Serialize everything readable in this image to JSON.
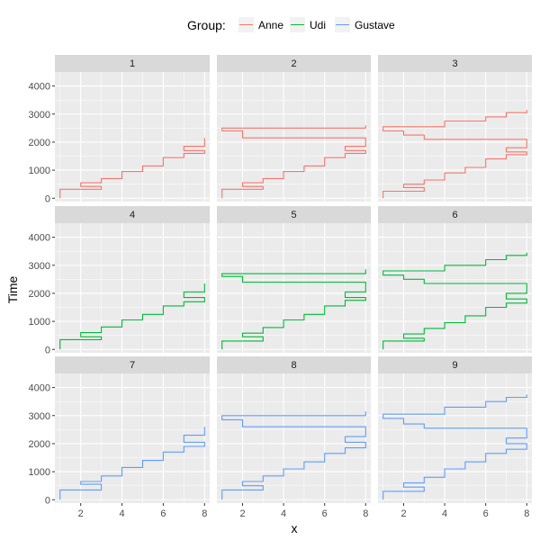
{
  "chart_data": {
    "type": "line",
    "step": "hv",
    "facet": "wrap 3x3",
    "xlabel": "x",
    "ylabel": "Time",
    "xlim": [
      0.75,
      8.25
    ],
    "ylim": [
      -120,
      4500
    ],
    "xticks": [
      2,
      4,
      6,
      8
    ],
    "yticks": [
      0,
      1000,
      2000,
      3000,
      4000
    ],
    "grid": true,
    "legend": {
      "position": "top",
      "title": "Group:",
      "entries": [
        {
          "name": "Anne",
          "color": "#F8766D"
        },
        {
          "name": "Udi",
          "color": "#00BA38"
        },
        {
          "name": "Gustave",
          "color": "#619CFF"
        }
      ]
    },
    "panels": [
      {
        "label": "1",
        "group": "Anne",
        "paths": [
          {
            "x": [
              1,
              1,
              3,
              3,
              2,
              2,
              3,
              3,
              4,
              4,
              5,
              5,
              6,
              6,
              7,
              7,
              8,
              8,
              7,
              7,
              8,
              8
            ],
            "y": [
              0,
              320,
              320,
              420,
              420,
              550,
              550,
              700,
              700,
              950,
              950,
              1150,
              1150,
              1450,
              1450,
              1600,
              1600,
              1700,
              1700,
              1850,
              1850,
              2150
            ]
          }
        ]
      },
      {
        "label": "2",
        "group": "Anne",
        "paths": [
          {
            "x": [
              1,
              1,
              3,
              3,
              2,
              2,
              3,
              3,
              4,
              4,
              5,
              5,
              6,
              6,
              7,
              7,
              8,
              8,
              7,
              7,
              8,
              8
            ],
            "y": [
              0,
              320,
              320,
              420,
              420,
              550,
              550,
              700,
              700,
              950,
              950,
              1150,
              1150,
              1450,
              1450,
              1600,
              1600,
              1700,
              1700,
              1850,
              1850,
              2000
            ]
          },
          {
            "x": [
              8,
              8,
              2,
              2,
              1,
              1,
              8,
              8
            ],
            "y": [
              2000,
              2150,
              2150,
              2400,
              2400,
              2500,
              2500,
              2600
            ]
          }
        ]
      },
      {
        "label": "3",
        "group": "Anne",
        "paths": [
          {
            "x": [
              1,
              1,
              3,
              3,
              2,
              2,
              3,
              3,
              4,
              4,
              5,
              5,
              6,
              6,
              7,
              7,
              8,
              8,
              7,
              7,
              8,
              8
            ],
            "y": [
              0,
              250,
              250,
              380,
              380,
              500,
              500,
              650,
              650,
              900,
              900,
              1100,
              1100,
              1400,
              1400,
              1550,
              1550,
              1650,
              1650,
              1800,
              1800,
              2000
            ]
          },
          {
            "x": [
              8,
              8,
              3,
              3,
              2,
              2,
              1,
              1,
              4,
              4,
              6,
              6,
              7,
              7,
              8,
              8
            ],
            "y": [
              2000,
              2100,
              2100,
              2250,
              2250,
              2400,
              2400,
              2550,
              2550,
              2750,
              2750,
              2900,
              2900,
              3050,
              3050,
              3150
            ]
          }
        ]
      },
      {
        "label": "4",
        "group": "Udi",
        "paths": [
          {
            "x": [
              1,
              1,
              3,
              3,
              2,
              2,
              3,
              3,
              4,
              4,
              5,
              5,
              6,
              6,
              7,
              7,
              8,
              8,
              7,
              7,
              8,
              8
            ],
            "y": [
              0,
              350,
              350,
              450,
              450,
              600,
              600,
              800,
              800,
              1050,
              1050,
              1250,
              1250,
              1550,
              1550,
              1700,
              1700,
              1850,
              1850,
              2050,
              2050,
              2350
            ]
          }
        ]
      },
      {
        "label": "5",
        "group": "Udi",
        "paths": [
          {
            "x": [
              1,
              1,
              3,
              3,
              2,
              2,
              3,
              3,
              4,
              4,
              5,
              5,
              6,
              6,
              7,
              7,
              8,
              8,
              7,
              7,
              8,
              8
            ],
            "y": [
              0,
              300,
              300,
              450,
              450,
              580,
              580,
              780,
              780,
              1050,
              1050,
              1250,
              1250,
              1550,
              1550,
              1750,
              1750,
              1850,
              1850,
              2050,
              2050,
              2200
            ]
          },
          {
            "x": [
              8,
              8,
              2,
              2,
              1,
              1,
              8,
              8
            ],
            "y": [
              2200,
              2400,
              2400,
              2600,
              2600,
              2700,
              2700,
              2850
            ]
          }
        ]
      },
      {
        "label": "6",
        "group": "Udi",
        "paths": [
          {
            "x": [
              1,
              1,
              3,
              3,
              2,
              2,
              3,
              3,
              4,
              4,
              5,
              5,
              6,
              6,
              7,
              7,
              8,
              8,
              7,
              7,
              8,
              8
            ],
            "y": [
              0,
              300,
              300,
              400,
              400,
              550,
              550,
              750,
              750,
              950,
              950,
              1200,
              1200,
              1500,
              1500,
              1650,
              1650,
              1800,
              1800,
              2000,
              2000,
              2300
            ]
          },
          {
            "x": [
              8,
              8,
              3,
              3,
              2,
              2,
              1,
              1,
              4,
              4,
              6,
              6,
              7,
              7,
              8,
              8
            ],
            "y": [
              2300,
              2350,
              2350,
              2500,
              2500,
              2650,
              2650,
              2800,
              2800,
              3000,
              3000,
              3200,
              3200,
              3350,
              3350,
              3450
            ]
          }
        ]
      },
      {
        "label": "7",
        "group": "Gustave",
        "paths": [
          {
            "x": [
              1,
              1,
              3,
              3,
              2,
              2,
              3,
              3,
              4,
              4,
              5,
              5,
              6,
              6,
              7,
              7,
              8,
              8,
              7,
              7,
              8,
              8
            ],
            "y": [
              0,
              350,
              350,
              550,
              550,
              650,
              650,
              850,
              850,
              1150,
              1150,
              1400,
              1400,
              1700,
              1700,
              1900,
              1900,
              2050,
              2050,
              2300,
              2300,
              2600
            ]
          }
        ]
      },
      {
        "label": "8",
        "group": "Gustave",
        "paths": [
          {
            "x": [
              1,
              1,
              3,
              3,
              2,
              2,
              3,
              3,
              4,
              4,
              5,
              5,
              6,
              6,
              7,
              7,
              8,
              8,
              7,
              7,
              8,
              8
            ],
            "y": [
              0,
              350,
              350,
              500,
              500,
              650,
              650,
              850,
              850,
              1100,
              1100,
              1350,
              1350,
              1650,
              1650,
              1850,
              1850,
              2050,
              2050,
              2250,
              2250,
              2550
            ]
          },
          {
            "x": [
              8,
              8,
              2,
              2,
              1,
              1,
              8,
              8
            ],
            "y": [
              2550,
              2600,
              2600,
              2850,
              2850,
              3000,
              3000,
              3150
            ]
          }
        ]
      },
      {
        "label": "9",
        "group": "Gustave",
        "paths": [
          {
            "x": [
              1,
              1,
              3,
              3,
              2,
              2,
              3,
              3,
              4,
              4,
              5,
              5,
              6,
              6,
              7,
              7,
              8,
              8,
              7,
              7,
              8,
              8
            ],
            "y": [
              0,
              300,
              300,
              450,
              450,
              600,
              600,
              800,
              800,
              1100,
              1100,
              1350,
              1350,
              1650,
              1650,
              1800,
              1800,
              2000,
              2000,
              2200,
              2200,
              2550
            ]
          },
          {
            "x": [
              8,
              8,
              3,
              3,
              2,
              2,
              1,
              1,
              4,
              4,
              6,
              6,
              7,
              7,
              8,
              8
            ],
            "y": [
              2550,
              2550,
              2550,
              2700,
              2700,
              2900,
              2900,
              3050,
              3050,
              3300,
              3300,
              3500,
              3500,
              3650,
              3650,
              3750
            ]
          }
        ]
      }
    ]
  }
}
